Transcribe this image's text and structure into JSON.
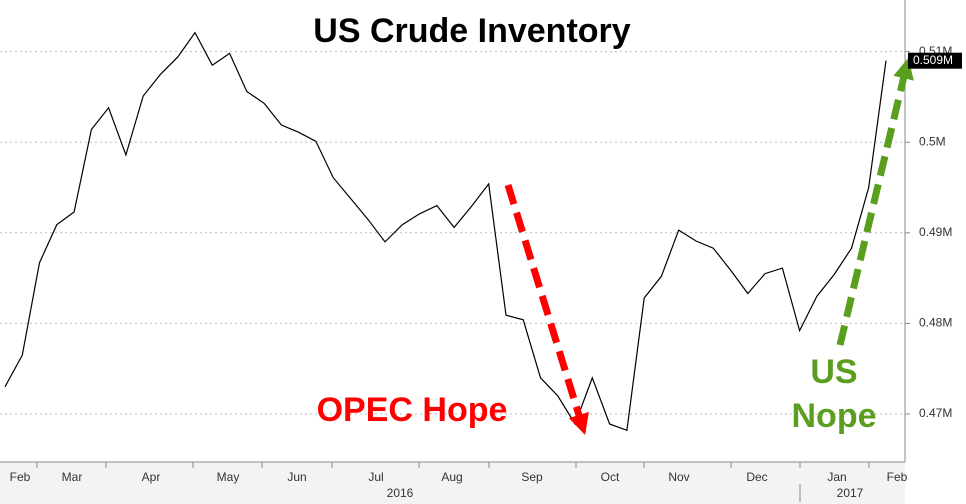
{
  "chart_data": {
    "type": "line",
    "title": "US Crude Inventory",
    "categories": [
      null,
      null,
      null,
      null,
      null,
      null,
      null,
      null,
      null,
      null,
      null,
      null,
      null,
      null,
      null,
      null,
      null,
      null,
      null,
      null,
      null,
      null,
      null,
      null,
      null,
      null,
      null,
      null,
      null,
      null,
      null,
      null,
      null,
      null,
      null,
      null,
      null,
      null,
      null,
      null,
      null,
      null,
      null,
      null,
      null,
      null,
      null,
      null,
      null,
      null,
      null,
      null
    ],
    "series": [
      {
        "name": "US Crude Inventory",
        "color": "#000000",
        "values": [
          0.473,
          0.4765,
          0.4867,
          0.4909,
          0.4923,
          0.5014,
          0.5038,
          0.4986,
          0.5051,
          0.5075,
          0.5094,
          0.5121,
          0.5085,
          0.5098,
          0.5056,
          0.5043,
          0.5019,
          0.5011,
          0.5001,
          0.4961,
          0.4938,
          0.4915,
          0.489,
          0.4909,
          0.4921,
          0.493,
          0.4906,
          0.4929,
          0.4954,
          0.4809,
          0.4804,
          0.474,
          0.472,
          0.4689,
          0.474,
          0.4689,
          0.4682,
          0.4828,
          0.4852,
          0.4903,
          0.4891,
          0.4883,
          0.4859,
          0.4833,
          0.4855,
          0.4861,
          0.4792,
          0.483,
          0.4854,
          0.4883,
          0.495,
          0.509
        ],
        "last_value_label": "0.509M"
      }
    ],
    "months": [
      "Feb",
      "Mar",
      "Apr",
      "May",
      "Jun",
      "Jul",
      "Aug",
      "Sep",
      "Oct",
      "Nov",
      "Dec",
      "Jan",
      "Feb"
    ],
    "years": [
      "2016",
      "2017"
    ],
    "ylim": [
      0.4647,
      0.5157
    ],
    "yticks": [
      {
        "value": 0.47,
        "label": "0.47M"
      },
      {
        "value": 0.48,
        "label": "0.48M"
      },
      {
        "value": 0.49,
        "label": "0.49M"
      },
      {
        "value": 0.5,
        "label": "0.5M"
      },
      {
        "value": 0.51,
        "label": "0.51M"
      }
    ],
    "grid": true,
    "annotations": {
      "opec": "OPEC Hope",
      "us_line1": "US",
      "us_line2": "Nope"
    }
  }
}
